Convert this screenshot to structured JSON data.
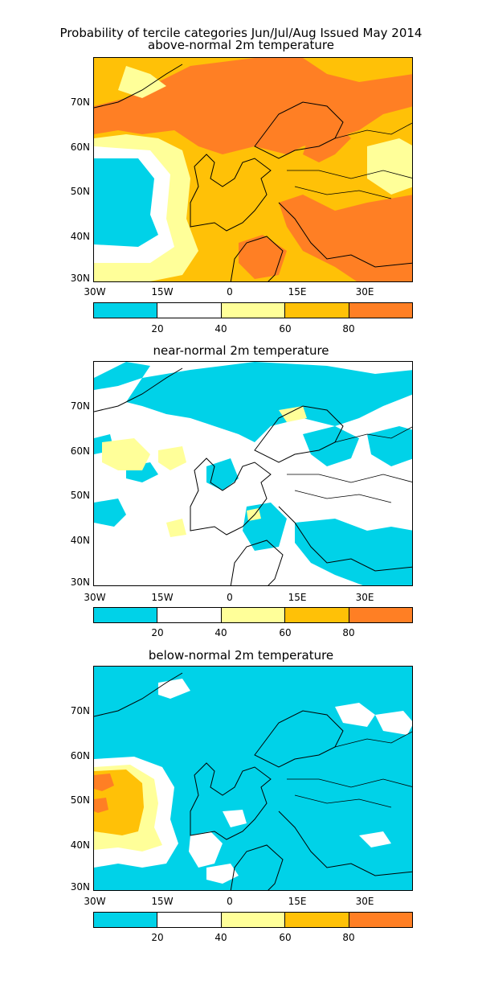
{
  "main_title": "Probability of tercile categories Jun/Jul/Aug Issued May 2014",
  "colors": {
    "cyan": "#00d2e8",
    "white": "#ffffff",
    "light_yellow": "#ffff99",
    "orange_yellow": "#ffc107",
    "orange": "#ff7f24",
    "coast": "#000000"
  },
  "panels": [
    {
      "title": "above-normal 2m temperature"
    },
    {
      "title": "near-normal 2m temperature"
    },
    {
      "title": "below-normal 2m temperature"
    }
  ],
  "lat_labels": [
    "70N",
    "60N",
    "50N",
    "40N",
    "30N"
  ],
  "lon_labels": [
    "30W",
    "15W",
    "0",
    "15E",
    "30E"
  ],
  "colorbar_labels": [
    "20",
    "40",
    "60",
    "80"
  ],
  "colorbar_colors": [
    "#00d2e8",
    "#ffffff",
    "#ffff99",
    "#ffc107",
    "#ff7f24"
  ]
}
